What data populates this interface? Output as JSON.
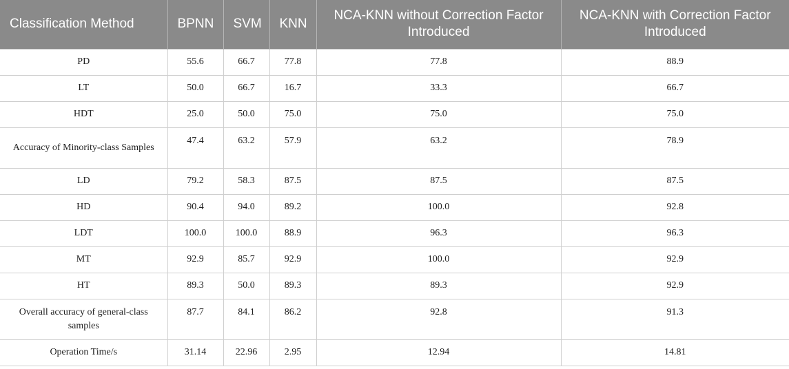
{
  "table": {
    "headers": [
      "Classification Method",
      "BPNN",
      "SVM",
      "KNN",
      "NCA-KNN without Correction Factor Introduced",
      "NCA-KNN with Correction Factor Introduced"
    ],
    "rows": [
      [
        "PD",
        "55.6",
        "66.7",
        "77.8",
        "77.8",
        "88.9"
      ],
      [
        "LT",
        "50.0",
        "66.7",
        "16.7",
        "33.3",
        "66.7"
      ],
      [
        "HDT",
        "25.0",
        "50.0",
        "75.0",
        "75.0",
        "75.0"
      ],
      [
        "Accuracy of Minority-class Samples",
        "47.4",
        "63.2",
        "57.9",
        "63.2",
        "78.9"
      ],
      [
        "LD",
        "79.2",
        "58.3",
        "87.5",
        "87.5",
        "87.5"
      ],
      [
        "HD",
        "90.4",
        "94.0",
        "89.2",
        "100.0",
        "92.8"
      ],
      [
        "LDT",
        "100.0",
        "100.0",
        "88.9",
        "96.3",
        "96.3"
      ],
      [
        "MT",
        "92.9",
        "85.7",
        "92.9",
        "100.0",
        "92.9"
      ],
      [
        "HT",
        "89.3",
        "50.0",
        "89.3",
        "89.3",
        "92.9"
      ],
      [
        "Overall accuracy of general-class samples",
        "87.7",
        "84.1",
        "86.2",
        "92.8",
        "91.3"
      ],
      [
        "Operation Time/s",
        "31.14",
        "22.96",
        "2.95",
        "12.94",
        "14.81"
      ]
    ]
  }
}
